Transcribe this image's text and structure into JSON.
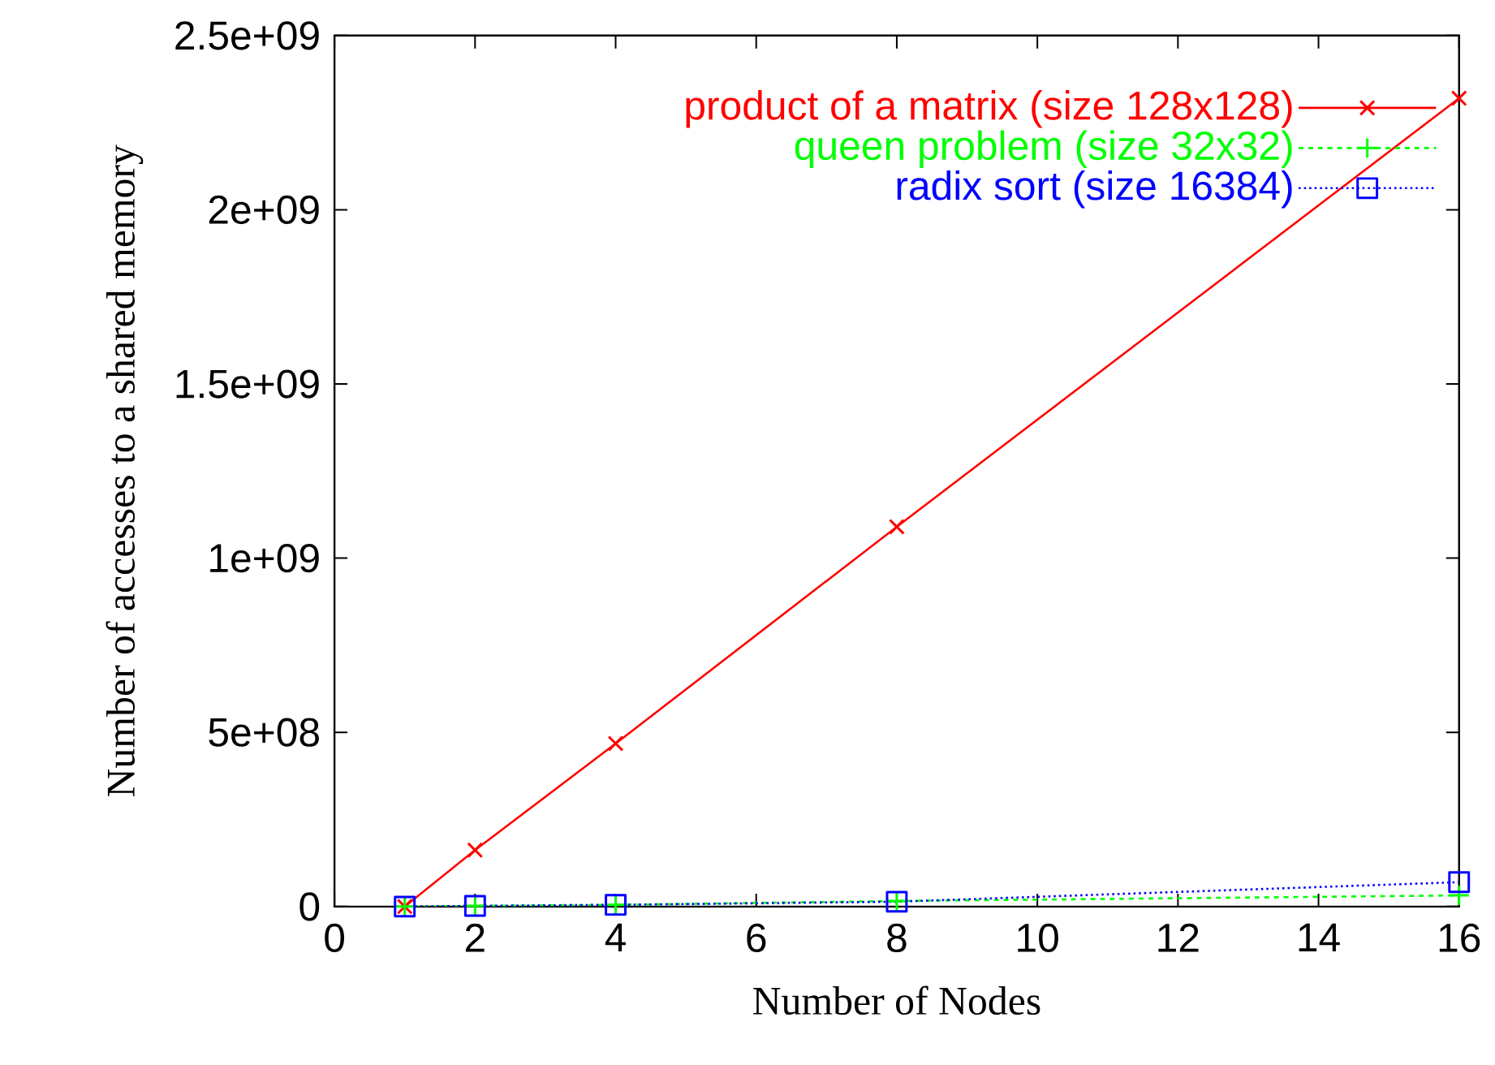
{
  "chart_data": {
    "type": "line",
    "xlabel": "Number of Nodes",
    "ylabel": "Number of accesses to a shared memory",
    "x": [
      1,
      2,
      4,
      8,
      16
    ],
    "series": [
      {
        "name": "product of a matrix (size 128x128)",
        "color": "#ff0000",
        "marker": "cross",
        "line_style": "solid",
        "values": [
          0,
          162000000,
          468000000,
          1090000000,
          2320000000
        ]
      },
      {
        "name": "queen problem (size 32x32)",
        "color": "#00ff00",
        "marker": "plus",
        "line_style": "dashed",
        "values": [
          0,
          2000000,
          5000000,
          16000000,
          32000000
        ]
      },
      {
        "name": "radix sort (size 16384)",
        "color": "#0000ff",
        "marker": "square",
        "line_style": "dotted",
        "values": [
          0,
          2000000,
          5000000,
          14000000,
          70000000
        ]
      }
    ],
    "xlim": [
      0,
      16
    ],
    "xticks": [
      0,
      2,
      4,
      6,
      8,
      10,
      12,
      14,
      16
    ],
    "ylim": [
      0,
      2500000000
    ],
    "yticks": [
      {
        "value": 0,
        "label": "0"
      },
      {
        "value": 500000000,
        "label": "5e+08"
      },
      {
        "value": 1000000000,
        "label": "1e+09"
      },
      {
        "value": 1500000000,
        "label": "1.5e+09"
      },
      {
        "value": 2000000000,
        "label": "2e+09"
      },
      {
        "value": 2500000000,
        "label": "2.5e+09"
      }
    ],
    "grid": false,
    "legend": "top right"
  }
}
